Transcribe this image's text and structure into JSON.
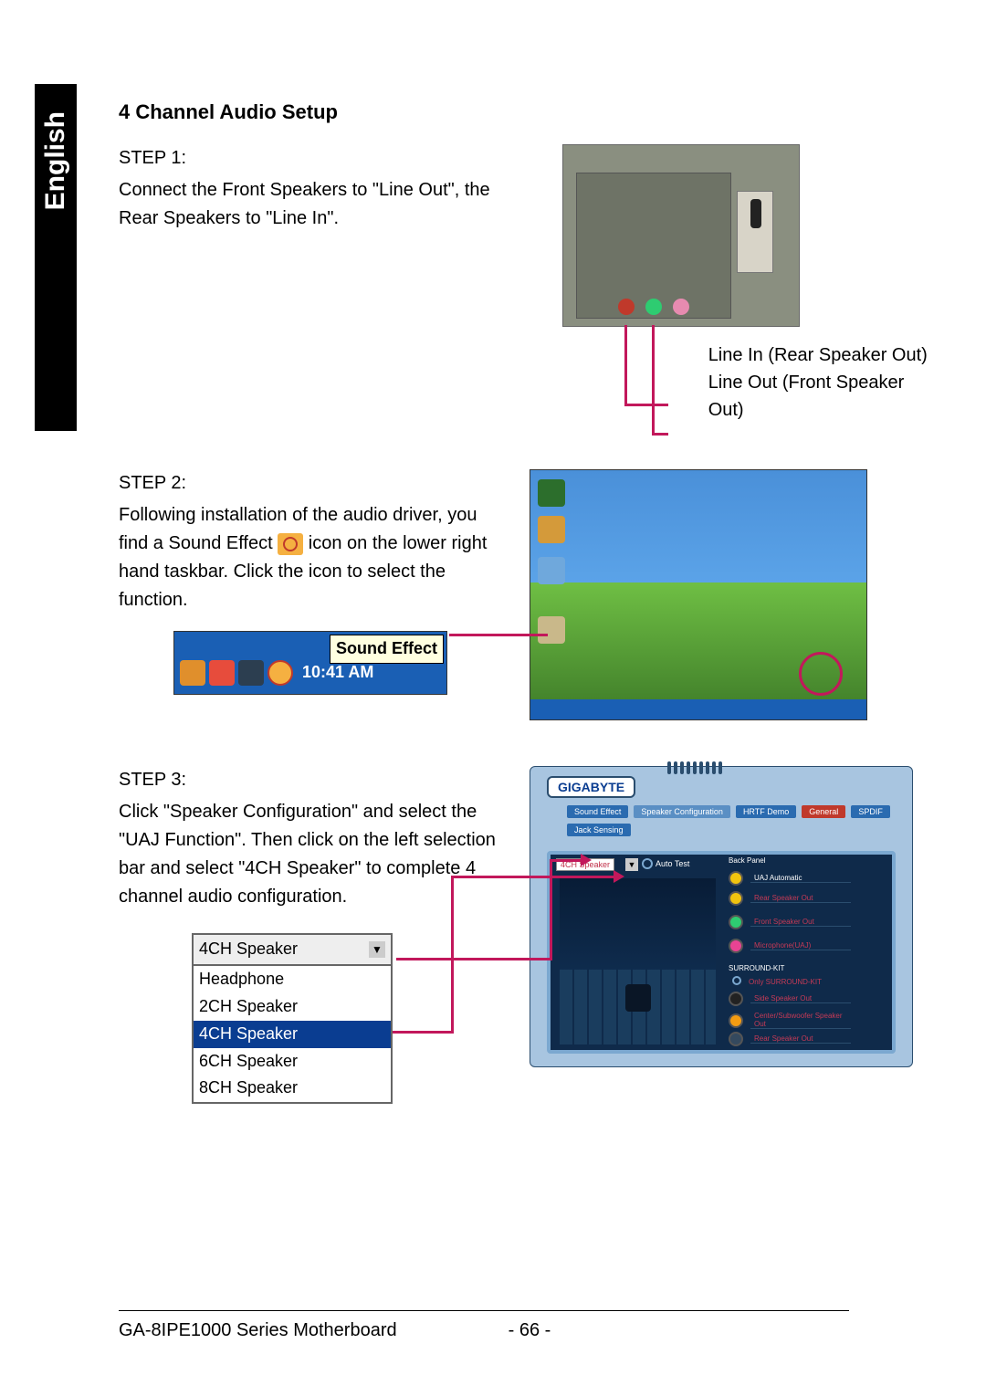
{
  "sidebar": {
    "language": "English"
  },
  "heading": "4 Channel Audio Setup",
  "step1": {
    "label": "STEP 1:",
    "text": "Connect the Front Speakers to \"Line Out\", the Rear Speakers to \"Line In\".",
    "caption_line_in": "Line In (Rear Speaker Out)",
    "caption_line_out": "Line Out (Front Speaker Out)",
    "jack_colors": {
      "line_in": "#c0392b",
      "line_out": "#2ecc71",
      "mic": "#e78bb0"
    },
    "leader_color": "#c2185b"
  },
  "step2": {
    "label": "STEP 2:",
    "text_before_icon": "Following installation of the audio driver, you find a Sound Effect ",
    "text_after_icon": " icon on the lower right hand taskbar. Click the icon to select the function.",
    "tooltip_label": "Sound Effect",
    "tray_time": "10:41 AM",
    "desktop": {
      "sky_top": "#4a90d9",
      "sky_bottom": "#5ba3e8",
      "hill_top": "#6fbf44",
      "hill_bottom": "#3d7a28",
      "taskbar": "#1a5fb4",
      "highlight_circle": "#c2185b"
    }
  },
  "step3": {
    "label": "STEP 3:",
    "text": "Click \"Speaker Configuration\" and select the \"UAJ Function\".  Then click on the left selection bar and select \"4CH Speaker\" to complete 4 channel audio configuration.",
    "dropdown": {
      "selected": "4CH Speaker",
      "options": [
        "Headphone",
        "2CH Speaker",
        "4CH Speaker",
        "6CH Speaker",
        "8CH Speaker"
      ],
      "highlight_index": 2,
      "highlight_bg": "#0a3d91"
    },
    "config_window": {
      "title": "GIGABYTE",
      "tabs": [
        "Sound Effect",
        "Speaker Configuration",
        "HRTF Demo",
        "General",
        "SPDIF",
        "Jack Sensing"
      ],
      "speaker_select": "4CH Speaker",
      "auto_test": "Auto Test",
      "panel_label": "Back Panel",
      "uaj_label": "UAJ Automatic",
      "rows": [
        {
          "color": "#f1c40f",
          "label": "Rear Speaker Out"
        },
        {
          "color": "#2ecc71",
          "label": "Front Speaker Out"
        },
        {
          "color": "#e84393",
          "label": "Microphone(UAJ)"
        }
      ],
      "surround_kit": "SURROUND-KIT",
      "only_surround": "Only SURROUND-KIT",
      "sk_rows": [
        {
          "color": "#222222",
          "label": "Side Speaker Out"
        },
        {
          "color": "#f39c12",
          "label": "Center/Subwoofer Speaker Out"
        },
        {
          "color": "#34495e",
          "label": "Rear Speaker Out"
        }
      ],
      "bg": "#a8c5e0",
      "body_bg": "#0f2a4a",
      "border": "#7ba8d0"
    }
  },
  "footer": {
    "left": "GA-8IPE1000 Series Motherboard",
    "page": "- 66 -"
  }
}
